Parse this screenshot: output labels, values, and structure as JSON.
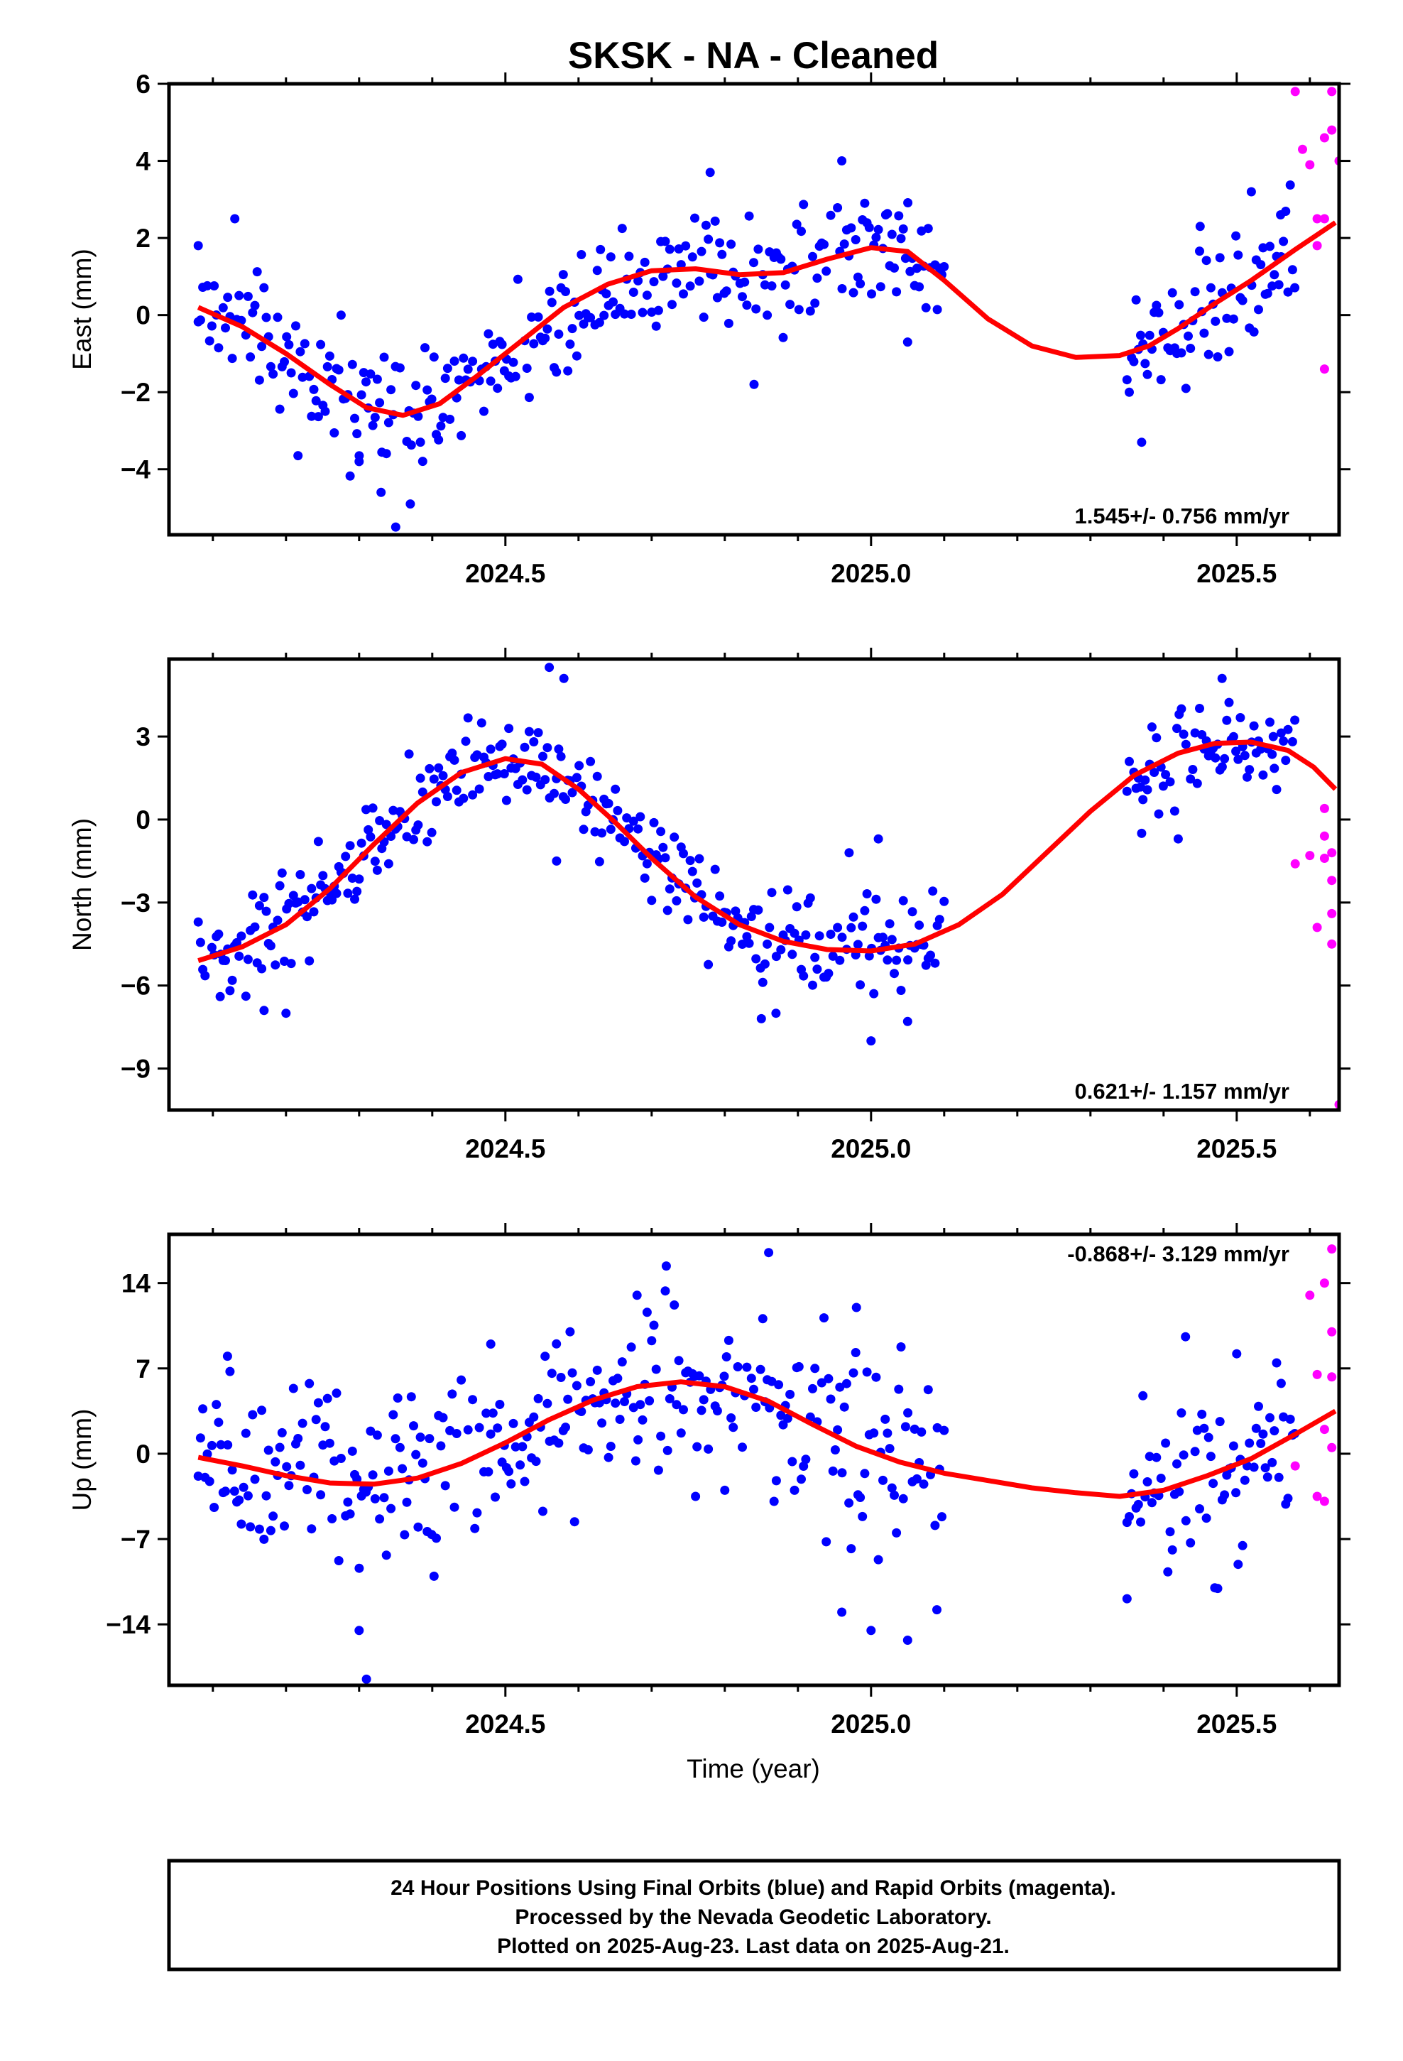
{
  "title": "SKSK  - NA - Cleaned",
  "colors": {
    "final": "#0000ff",
    "rapid": "#ff00ff",
    "model": "#ff0000",
    "frame": "#000000"
  },
  "xlabel": "Time (year)",
  "footer": {
    "line1": "24 Hour Positions Using Final Orbits (blue) and Rapid Orbits (magenta).",
    "line2": "Processed by the Nevada Geodetic Laboratory.",
    "line3": "Plotted on 2025-Aug-23. Last data on 2025-Aug-21."
  },
  "chart_data": [
    {
      "type": "scatter",
      "ylabel": "East (mm)",
      "rate_text": "1.545+/- 0.756 mm/yr",
      "rate_position": "bottom-right",
      "xlim": [
        2024.04,
        2025.64
      ],
      "ylim": [
        -5.7,
        6.0
      ],
      "xticks": [
        2024.5,
        2025.0,
        2025.5
      ],
      "xtick_labels": [
        "2024.5",
        "2025.0",
        "2025.5"
      ],
      "yticks": [
        -4,
        -2,
        0,
        2,
        4,
        6
      ],
      "ytick_labels": [
        "−4",
        "−2",
        "0",
        "2",
        "4",
        "6"
      ],
      "series": [
        {
          "name": "Final Orbits",
          "marker": "dot",
          "x_range": [
            [
              2024.08,
              2025.1
            ],
            [
              2025.35,
              2025.58
            ]
          ],
          "scatter_sigma": 0.75,
          "points": [
            [
              2024.08,
              1.8
            ],
            [
              2024.13,
              2.5
            ],
            [
              2024.3,
              -3.8
            ],
            [
              2024.33,
              -4.6
            ],
            [
              2024.35,
              -5.5
            ],
            [
              2024.37,
              -4.9
            ],
            [
              2024.63,
              1.7
            ],
            [
              2024.78,
              3.7
            ],
            [
              2024.84,
              -1.8
            ],
            [
              2024.96,
              4.0
            ],
            [
              2025.02,
              2.6
            ],
            [
              2025.05,
              -0.7
            ],
            [
              2025.37,
              -3.3
            ],
            [
              2025.45,
              2.3
            ],
            [
              2025.52,
              3.2
            ],
            [
              2025.56,
              2.6
            ]
          ]
        },
        {
          "name": "Rapid Orbits",
          "marker": "dot",
          "points": [
            [
              2025.58,
              5.8
            ],
            [
              2025.59,
              4.3
            ],
            [
              2025.6,
              3.9
            ],
            [
              2025.61,
              2.5
            ],
            [
              2025.61,
              1.8
            ],
            [
              2025.62,
              -1.4
            ],
            [
              2025.62,
              4.6
            ],
            [
              2025.63,
              5.8
            ],
            [
              2025.63,
              4.8
            ],
            [
              2025.64,
              4.0
            ],
            [
              2025.62,
              2.5
            ]
          ]
        },
        {
          "name": "Model",
          "marker": "line",
          "x": [
            2024.08,
            2024.14,
            2024.2,
            2024.26,
            2024.31,
            2024.36,
            2024.41,
            2024.46,
            2024.52,
            2024.58,
            2024.64,
            2024.7,
            2024.76,
            2024.82,
            2024.88,
            2024.94,
            2025.0,
            2025.05,
            2025.1,
            2025.16,
            2025.22,
            2025.28,
            2025.34,
            2025.38,
            2025.42,
            2025.47,
            2025.52,
            2025.58,
            2025.635
          ],
          "y": [
            0.2,
            -0.3,
            -1.0,
            -1.8,
            -2.4,
            -2.6,
            -2.3,
            -1.6,
            -0.7,
            0.2,
            0.8,
            1.15,
            1.2,
            1.05,
            1.1,
            1.45,
            1.75,
            1.65,
            0.9,
            -0.1,
            -0.8,
            -1.1,
            -1.05,
            -0.8,
            -0.35,
            0.3,
            0.9,
            1.7,
            2.4
          ]
        }
      ]
    },
    {
      "type": "scatter",
      "ylabel": "North (mm)",
      "rate_text": "0.621+/- 1.157 mm/yr",
      "rate_position": "bottom-right",
      "xlim": [
        2024.04,
        2025.64
      ],
      "ylim": [
        -10.5,
        5.8
      ],
      "xticks": [
        2024.5,
        2025.0,
        2025.5
      ],
      "xtick_labels": [
        "2024.5",
        "2025.0",
        "2025.5"
      ],
      "yticks": [
        -9,
        -6,
        -3,
        0,
        3
      ],
      "ytick_labels": [
        "−9",
        "−6",
        "−3",
        "0",
        "3"
      ],
      "series": [
        {
          "name": "Final Orbits",
          "marker": "dot",
          "x_range": [
            [
              2024.08,
              2025.1
            ],
            [
              2025.35,
              2025.58
            ]
          ],
          "scatter_sigma": 0.85,
          "points": [
            [
              2024.11,
              -6.4
            ],
            [
              2024.17,
              -6.9
            ],
            [
              2024.2,
              -7.0
            ],
            [
              2024.56,
              5.5
            ],
            [
              2024.58,
              5.1
            ],
            [
              2024.57,
              -1.5
            ],
            [
              2024.85,
              -7.2
            ],
            [
              2024.87,
              -7.0
            ],
            [
              2024.97,
              -1.2
            ],
            [
              2025.0,
              -8.0
            ],
            [
              2025.01,
              -0.7
            ],
            [
              2025.05,
              -7.3
            ],
            [
              2025.37,
              -0.5
            ],
            [
              2025.42,
              -0.7
            ],
            [
              2025.48,
              5.1
            ],
            [
              2025.55,
              3.0
            ]
          ]
        },
        {
          "name": "Rapid Orbits",
          "marker": "dot",
          "points": [
            [
              2025.58,
              -1.6
            ],
            [
              2025.6,
              -1.3
            ],
            [
              2025.61,
              -3.9
            ],
            [
              2025.62,
              0.4
            ],
            [
              2025.62,
              -0.6
            ],
            [
              2025.62,
              -1.4
            ],
            [
              2025.63,
              -2.2
            ],
            [
              2025.63,
              -1.2
            ],
            [
              2025.63,
              -3.4
            ],
            [
              2025.63,
              -4.5
            ],
            [
              2025.64,
              -10.3
            ]
          ]
        },
        {
          "name": "Model",
          "marker": "line",
          "x": [
            2024.08,
            2024.14,
            2024.2,
            2024.26,
            2024.32,
            2024.38,
            2024.44,
            2024.5,
            2024.55,
            2024.6,
            2024.65,
            2024.7,
            2024.76,
            2024.82,
            2024.88,
            2024.94,
            2025.0,
            2025.06,
            2025.12,
            2025.18,
            2025.24,
            2025.3,
            2025.36,
            2025.42,
            2025.47,
            2025.52,
            2025.57,
            2025.605,
            2025.635
          ],
          "y": [
            -5.1,
            -4.6,
            -3.8,
            -2.5,
            -0.9,
            0.6,
            1.7,
            2.2,
            2.0,
            1.1,
            -0.1,
            -1.4,
            -2.8,
            -3.8,
            -4.4,
            -4.7,
            -4.75,
            -4.5,
            -3.8,
            -2.7,
            -1.2,
            0.3,
            1.6,
            2.4,
            2.75,
            2.8,
            2.5,
            1.9,
            1.1
          ]
        }
      ]
    },
    {
      "type": "scatter",
      "ylabel": "Up (mm)",
      "rate_text": "-0.868+/- 3.129 mm/yr",
      "rate_position": "top-right",
      "xlim": [
        2024.04,
        2025.64
      ],
      "ylim": [
        -19,
        18
      ],
      "xticks": [
        2024.5,
        2025.0,
        2025.5
      ],
      "xtick_labels": [
        "2024.5",
        "2025.0",
        "2025.5"
      ],
      "yticks": [
        -14,
        -7,
        0,
        7,
        14
      ],
      "ytick_labels": [
        "−14",
        "−7",
        "0",
        "7",
        "14"
      ],
      "series": [
        {
          "name": "Final Orbits",
          "marker": "dot",
          "x_range": [
            [
              2024.08,
              2025.1
            ],
            [
              2025.35,
              2025.58
            ]
          ],
          "scatter_sigma": 3.4,
          "points": [
            [
              2024.3,
              -14.5
            ],
            [
              2024.31,
              -18.5
            ],
            [
              2024.12,
              8.0
            ],
            [
              2024.48,
              9.0
            ],
            [
              2024.68,
              13.0
            ],
            [
              2024.72,
              15.4
            ],
            [
              2024.76,
              -3.5
            ],
            [
              2024.8,
              -3.0
            ],
            [
              2024.86,
              16.5
            ],
            [
              2024.96,
              -13.0
            ],
            [
              2024.98,
              12.0
            ],
            [
              2025.0,
              -14.5
            ],
            [
              2025.05,
              -15.3
            ],
            [
              2025.09,
              -12.8
            ],
            [
              2025.35,
              -11.9
            ],
            [
              2025.43,
              9.6
            ],
            [
              2025.5,
              8.2
            ],
            [
              2025.47,
              -11.0
            ]
          ]
        },
        {
          "name": "Rapid Orbits",
          "marker": "dot",
          "points": [
            [
              2025.58,
              -1.0
            ],
            [
              2025.6,
              13.0
            ],
            [
              2025.61,
              6.5
            ],
            [
              2025.61,
              -3.5
            ],
            [
              2025.62,
              14.0
            ],
            [
              2025.62,
              2.0
            ],
            [
              2025.62,
              -3.9
            ],
            [
              2025.63,
              0.5
            ],
            [
              2025.63,
              10.0
            ],
            [
              2025.63,
              6.3
            ],
            [
              2025.63,
              16.8
            ]
          ]
        },
        {
          "name": "Model",
          "marker": "line",
          "x": [
            2024.08,
            2024.14,
            2024.2,
            2024.26,
            2024.32,
            2024.38,
            2024.44,
            2024.5,
            2024.56,
            2024.62,
            2024.68,
            2024.74,
            2024.8,
            2024.86,
            2024.92,
            2024.98,
            2025.04,
            2025.1,
            2025.16,
            2025.22,
            2025.28,
            2025.34,
            2025.4,
            2025.46,
            2025.52,
            2025.58,
            2025.635
          ],
          "y": [
            -0.3,
            -1.0,
            -1.8,
            -2.4,
            -2.5,
            -2.0,
            -0.8,
            0.9,
            2.8,
            4.4,
            5.5,
            5.9,
            5.5,
            4.3,
            2.4,
            0.6,
            -0.7,
            -1.6,
            -2.2,
            -2.8,
            -3.2,
            -3.5,
            -3.0,
            -1.8,
            -0.4,
            1.6,
            3.5
          ]
        }
      ]
    }
  ]
}
